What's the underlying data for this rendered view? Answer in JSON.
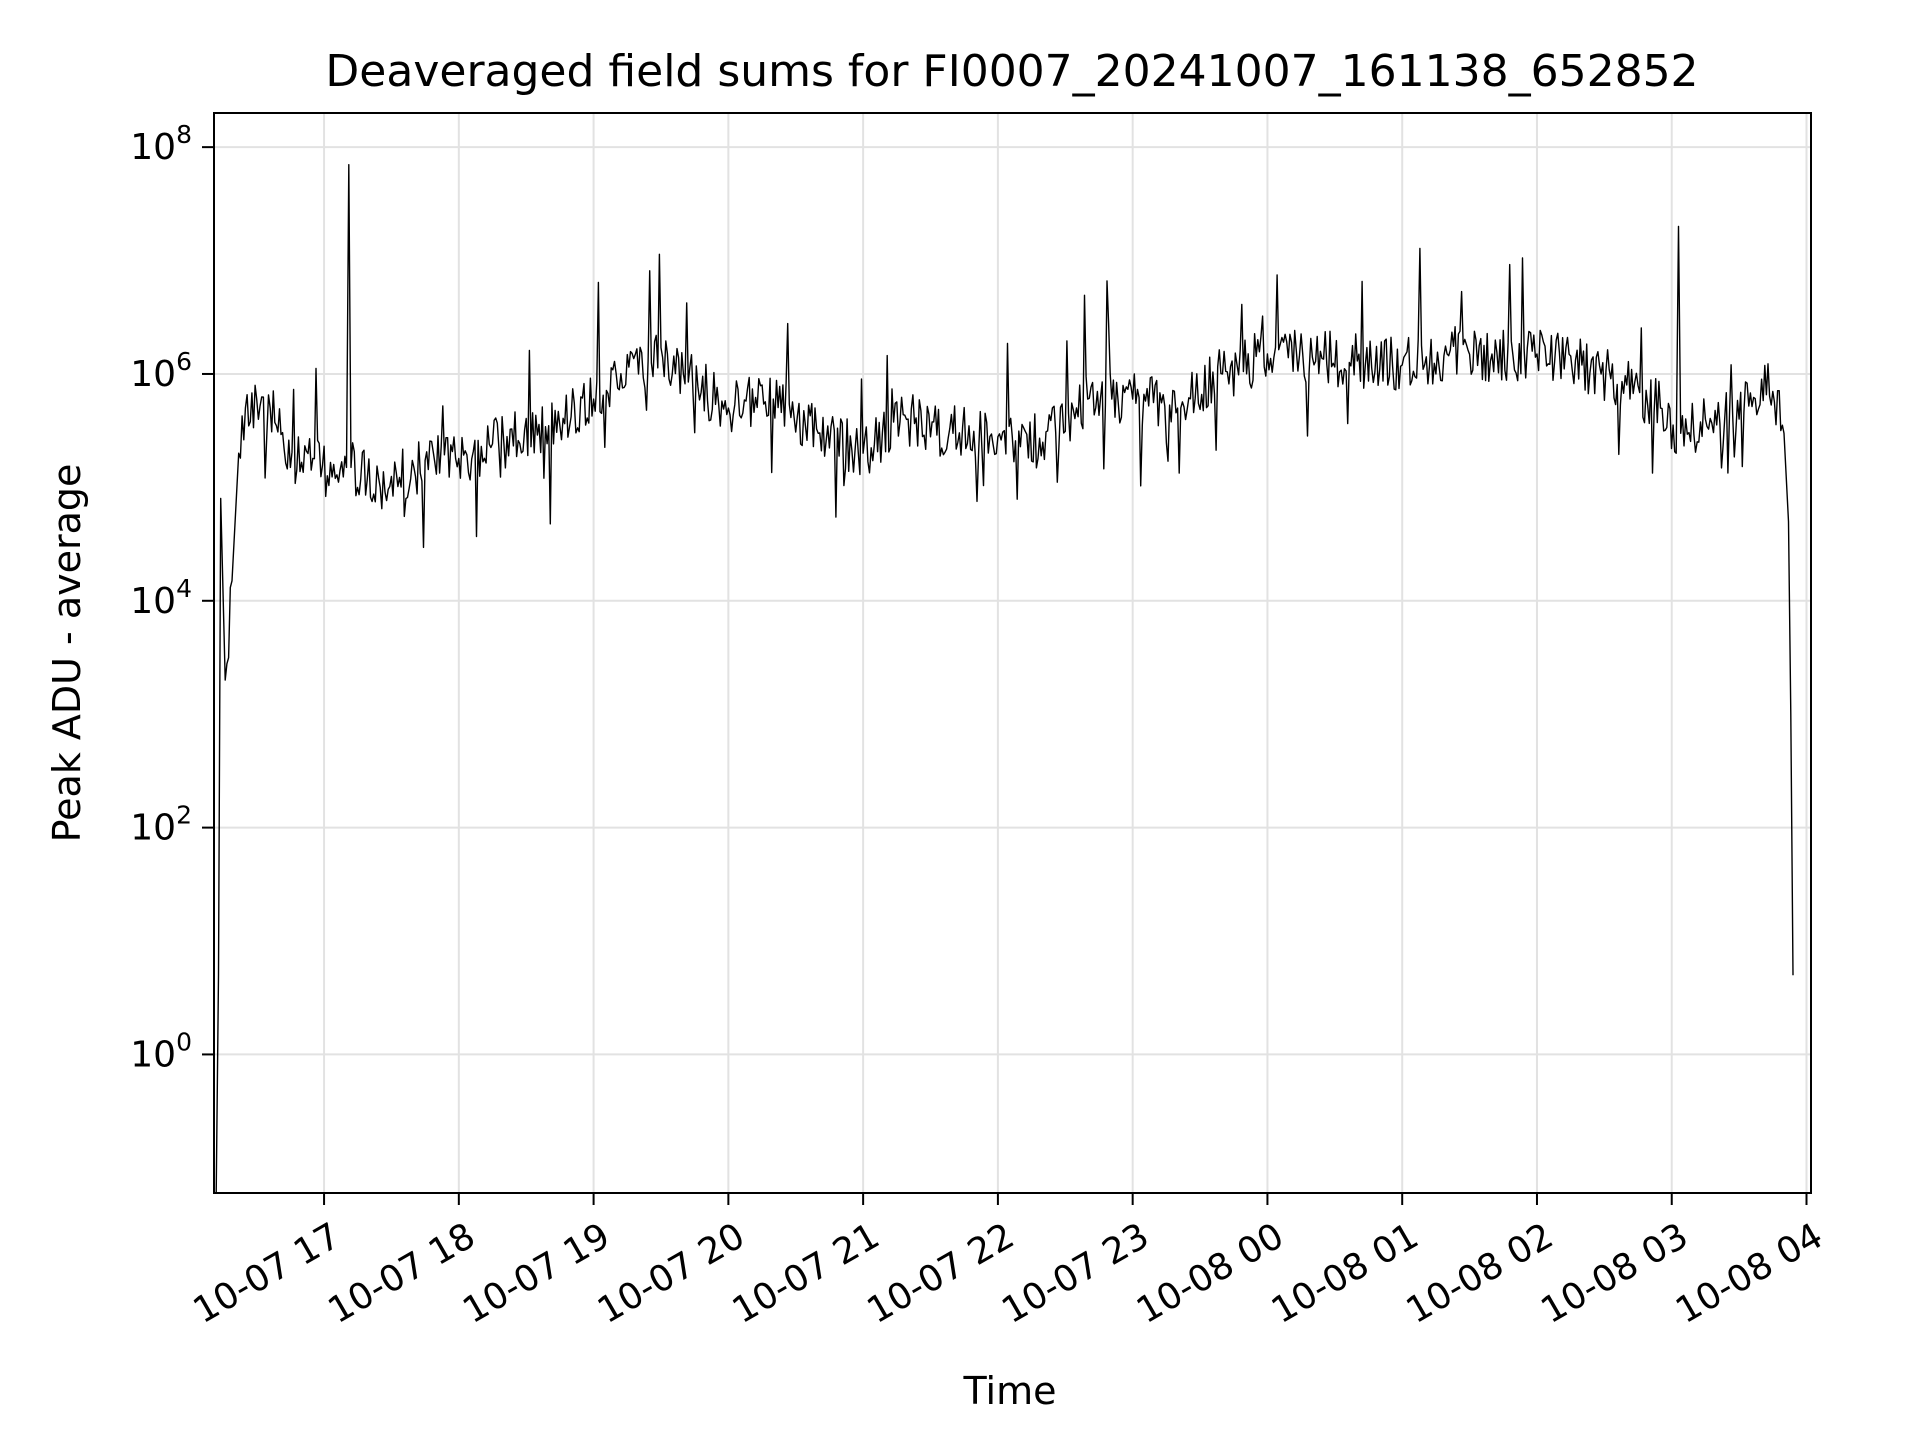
{
  "chart_data": {
    "type": "line",
    "title": "Deaveraged field sums for FI0007_20241007_161138_652852",
    "xlabel": "Time",
    "ylabel": "Peak ADU - average",
    "yscale": "log",
    "xlim": [
      "2024-10-07 16:11",
      "2024-10-08 04:02"
    ],
    "ylim": [
      0.06,
      200000000.0
    ],
    "grid": true,
    "line_color": "#000000",
    "x_ticks": [
      "10-07 17",
      "10-07 18",
      "10-07 19",
      "10-07 20",
      "10-07 21",
      "10-07 22",
      "10-07 23",
      "10-08 00",
      "10-08 01",
      "10-08 02",
      "10-08 03",
      "10-08 04"
    ],
    "y_ticks": [
      {
        "base": "10",
        "exp": "0",
        "value": 1
      },
      {
        "base": "10",
        "exp": "2",
        "value": 100
      },
      {
        "base": "10",
        "exp": "4",
        "value": 10000
      },
      {
        "base": "10",
        "exp": "6",
        "value": 1000000
      },
      {
        "base": "10",
        "exp": "8",
        "value": 100000000
      }
    ],
    "series": [
      {
        "x": [
          "2024-10-07 16:12",
          "2024-10-07 16:13",
          "2024-10-07 16:14",
          "2024-10-07 16:16",
          "2024-10-07 16:19",
          "2024-10-07 16:22",
          "2024-10-07 16:25",
          "2024-10-07 16:30",
          "2024-10-07 16:36",
          "2024-10-07 16:45",
          "2024-10-07 16:55",
          "2024-10-07 17:05",
          "2024-10-07 17:10",
          "2024-10-07 17:11",
          "2024-10-07 17:12",
          "2024-10-07 17:25",
          "2024-10-07 17:40",
          "2024-10-07 18:00",
          "2024-10-07 18:20",
          "2024-10-07 18:40",
          "2024-10-07 19:00",
          "2024-10-07 19:20",
          "2024-10-07 19:30",
          "2024-10-07 19:40",
          "2024-10-07 20:00",
          "2024-10-07 20:20",
          "2024-10-07 20:40",
          "2024-10-07 21:00",
          "2024-10-07 21:20",
          "2024-10-07 21:40",
          "2024-10-07 22:00",
          "2024-10-07 22:20",
          "2024-10-07 22:40",
          "2024-10-07 23:00",
          "2024-10-07 23:20",
          "2024-10-07 23:40",
          "2024-10-08 00:00",
          "2024-10-08 00:20",
          "2024-10-08 00:40",
          "2024-10-08 01:00",
          "2024-10-08 01:20",
          "2024-10-08 01:40",
          "2024-10-08 02:00",
          "2024-10-08 02:20",
          "2024-10-08 02:40",
          "2024-10-08 02:55",
          "2024-10-08 03:02",
          "2024-10-08 03:03",
          "2024-10-08 03:04",
          "2024-10-08 03:15",
          "2024-10-08 03:30",
          "2024-10-08 03:40",
          "2024-10-08 03:45",
          "2024-10-08 03:50",
          "2024-10-08 03:52",
          "2024-10-08 03:53",
          "2024-10-08 03:54"
        ],
        "y": [
          0.06,
          5,
          80000,
          2000,
          15000,
          200000,
          500000,
          600000,
          500000,
          150000,
          180000,
          120000,
          150000,
          70000000,
          150000,
          100000,
          150000,
          180000,
          250000,
          350000,
          600000,
          1000000,
          1700000,
          1000000,
          500000,
          600000,
          300000,
          200000,
          400000,
          300000,
          280000,
          250000,
          600000,
          600000,
          500000,
          1000000,
          1500000,
          1400000,
          1300000,
          1200000,
          1500000,
          1500000,
          1500000,
          1200000,
          800000,
          500000,
          200000,
          20000000,
          300000,
          400000,
          400000,
          900000,
          700000,
          300000,
          50000,
          1000,
          5
        ]
      }
    ]
  }
}
